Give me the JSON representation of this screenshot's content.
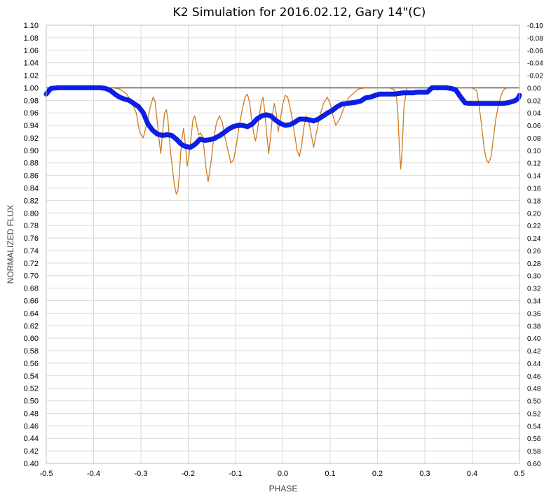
{
  "chart_data": {
    "type": "line",
    "title": "K2 Simulation for 2016.02.12, Gary 14\"(C)",
    "xlabel": "PHASE",
    "ylabel": "NORMALIZED FLUX",
    "xlim": [
      -0.5,
      0.5
    ],
    "ylim": [
      0.4,
      1.1
    ],
    "y2lim": [
      -0.1,
      0.6
    ],
    "grid": true,
    "legend": "none",
    "x_ticks": [
      "-0.5",
      "-0.4",
      "-0.3",
      "-0.2",
      "-0.1",
      "0.0",
      "0.1",
      "0.2",
      "0.3",
      "0.4",
      "0.5"
    ],
    "y_ticks": [
      "1.10",
      "1.08",
      "1.06",
      "1.04",
      "1.02",
      "1.00",
      "0.98",
      "0.96",
      "0.94",
      "0.92",
      "0.90",
      "0.88",
      "0.86",
      "0.84",
      "0.82",
      "0.80",
      "0.78",
      "0.76",
      "0.74",
      "0.72",
      "0.70",
      "0.68",
      "0.66",
      "0.64",
      "0.62",
      "0.60",
      "0.58",
      "0.56",
      "0.54",
      "0.52",
      "0.50",
      "0.48",
      "0.46",
      "0.44",
      "0.42",
      "0.40"
    ],
    "y2_ticks": [
      "-0.10",
      "-0.08",
      "-0.06",
      "-0.04",
      "-0.02",
      "0.00",
      "0.02",
      "0.04",
      "0.06",
      "0.08",
      "0.10",
      "0.12",
      "0.14",
      "0.16",
      "0.18",
      "0.20",
      "0.22",
      "0.24",
      "0.26",
      "0.28",
      "0.30",
      "0.32",
      "0.34",
      "0.36",
      "0.38",
      "0.40",
      "0.42",
      "0.44",
      "0.46",
      "0.48",
      "0.50",
      "0.52",
      "0.54",
      "0.56",
      "0.58",
      "0.60"
    ],
    "series": [
      {
        "color": "#D07A20",
        "axis": "primary",
        "x": [
          -0.5,
          -0.36,
          -0.345,
          -0.33,
          -0.318,
          -0.31,
          -0.303,
          -0.295,
          -0.287,
          -0.28,
          -0.274,
          -0.27,
          -0.266,
          -0.262,
          -0.258,
          -0.254,
          -0.25,
          -0.246,
          -0.243,
          -0.24,
          -0.237,
          -0.234,
          -0.231,
          -0.228,
          -0.225,
          -0.222,
          -0.219,
          -0.216,
          -0.213,
          -0.21,
          -0.206,
          -0.202,
          -0.198,
          -0.194,
          -0.19,
          -0.186,
          -0.182,
          -0.178,
          -0.174,
          -0.17,
          -0.166,
          -0.162,
          -0.158,
          -0.152,
          -0.146,
          -0.14,
          -0.134,
          -0.128,
          -0.122,
          -0.116,
          -0.11,
          -0.104,
          -0.098,
          -0.092,
          -0.086,
          -0.08,
          -0.075,
          -0.07,
          -0.066,
          -0.062,
          -0.058,
          -0.054,
          -0.05,
          -0.046,
          -0.042,
          -0.038,
          -0.034,
          -0.03,
          -0.026,
          -0.022,
          -0.018,
          -0.014,
          -0.01,
          -0.005,
          0.0,
          0.005,
          0.01,
          0.015,
          0.02,
          0.025,
          0.03,
          0.035,
          0.04,
          0.045,
          0.05,
          0.055,
          0.06,
          0.065,
          0.07,
          0.078,
          0.086,
          0.094,
          0.1,
          0.106,
          0.112,
          0.12,
          0.13,
          0.14,
          0.15,
          0.16,
          0.175,
          0.19,
          0.2,
          0.225,
          0.235,
          0.24,
          0.243,
          0.246,
          0.249,
          0.252,
          0.256,
          0.262,
          0.4,
          0.41,
          0.415,
          0.42,
          0.425,
          0.43,
          0.435,
          0.44,
          0.445,
          0.45,
          0.455,
          0.46,
          0.465,
          0.47,
          0.48,
          0.5
        ],
        "y": [
          1.0,
          1.0,
          0.998,
          0.99,
          0.975,
          0.96,
          0.93,
          0.92,
          0.945,
          0.97,
          0.985,
          0.978,
          0.95,
          0.92,
          0.895,
          0.93,
          0.96,
          0.965,
          0.95,
          0.92,
          0.895,
          0.875,
          0.855,
          0.84,
          0.83,
          0.835,
          0.86,
          0.895,
          0.92,
          0.935,
          0.91,
          0.875,
          0.895,
          0.92,
          0.95,
          0.955,
          0.94,
          0.925,
          0.928,
          0.922,
          0.9,
          0.87,
          0.85,
          0.88,
          0.92,
          0.945,
          0.955,
          0.945,
          0.92,
          0.9,
          0.88,
          0.885,
          0.91,
          0.94,
          0.965,
          0.985,
          0.99,
          0.975,
          0.95,
          0.93,
          0.915,
          0.93,
          0.955,
          0.975,
          0.985,
          0.96,
          0.925,
          0.895,
          0.92,
          0.955,
          0.975,
          0.96,
          0.93,
          0.95,
          0.975,
          0.988,
          0.985,
          0.97,
          0.95,
          0.925,
          0.9,
          0.89,
          0.91,
          0.94,
          0.955,
          0.945,
          0.925,
          0.905,
          0.925,
          0.955,
          0.975,
          0.985,
          0.975,
          0.955,
          0.94,
          0.95,
          0.97,
          0.985,
          0.992,
          0.998,
          1.0,
          1.0,
          1.0,
          1.0,
          0.997,
          0.985,
          0.96,
          0.91,
          0.87,
          0.9,
          0.97,
          1.0,
          1.0,
          0.995,
          0.97,
          0.94,
          0.905,
          0.885,
          0.88,
          0.89,
          0.92,
          0.95,
          0.97,
          0.985,
          0.995,
          0.999,
          1.0,
          1.0
        ]
      },
      {
        "color": "#0A1EE6",
        "axis": "secondary",
        "x": [
          -0.5,
          -0.495,
          -0.49,
          -0.475,
          -0.45,
          -0.42,
          -0.4,
          -0.385,
          -0.375,
          -0.365,
          -0.355,
          -0.345,
          -0.335,
          -0.325,
          -0.315,
          -0.305,
          -0.295,
          -0.285,
          -0.275,
          -0.265,
          -0.255,
          -0.245,
          -0.235,
          -0.225,
          -0.215,
          -0.205,
          -0.195,
          -0.185,
          -0.175,
          -0.165,
          -0.155,
          -0.145,
          -0.135,
          -0.125,
          -0.115,
          -0.105,
          -0.095,
          -0.085,
          -0.075,
          -0.065,
          -0.055,
          -0.045,
          -0.035,
          -0.025,
          -0.015,
          -0.005,
          0.005,
          0.015,
          0.025,
          0.035,
          0.045,
          0.055,
          0.065,
          0.075,
          0.085,
          0.095,
          0.105,
          0.115,
          0.125,
          0.135,
          0.145,
          0.155,
          0.165,
          0.175,
          0.185,
          0.195,
          0.205,
          0.215,
          0.225,
          0.235,
          0.245,
          0.255,
          0.265,
          0.275,
          0.285,
          0.295,
          0.305,
          0.315,
          0.325,
          0.335,
          0.345,
          0.355,
          0.365,
          0.375,
          0.385,
          0.395,
          0.405,
          0.415,
          0.425,
          0.435,
          0.445,
          0.455,
          0.465,
          0.475,
          0.485,
          0.492,
          0.497,
          0.5
        ],
        "y": [
          0.01,
          0.005,
          0.001,
          0.0,
          0.0,
          0.0,
          0.0,
          0.0,
          0.001,
          0.004,
          0.01,
          0.015,
          0.018,
          0.02,
          0.025,
          0.03,
          0.04,
          0.058,
          0.068,
          0.074,
          0.076,
          0.075,
          0.076,
          0.082,
          0.09,
          0.094,
          0.095,
          0.09,
          0.082,
          0.084,
          0.083,
          0.081,
          0.077,
          0.072,
          0.066,
          0.062,
          0.06,
          0.06,
          0.062,
          0.058,
          0.05,
          0.045,
          0.043,
          0.045,
          0.052,
          0.057,
          0.06,
          0.059,
          0.055,
          0.05,
          0.05,
          0.051,
          0.053,
          0.05,
          0.045,
          0.04,
          0.036,
          0.03,
          0.026,
          0.025,
          0.024,
          0.023,
          0.021,
          0.016,
          0.015,
          0.012,
          0.01,
          0.01,
          0.01,
          0.01,
          0.009,
          0.008,
          0.008,
          0.008,
          0.007,
          0.007,
          0.007,
          0.0,
          0.0,
          0.0,
          0.0,
          0.001,
          0.003,
          0.014,
          0.024,
          0.025,
          0.025,
          0.025,
          0.025,
          0.025,
          0.025,
          0.025,
          0.025,
          0.024,
          0.022,
          0.02,
          0.017,
          0.012
        ]
      }
    ]
  }
}
